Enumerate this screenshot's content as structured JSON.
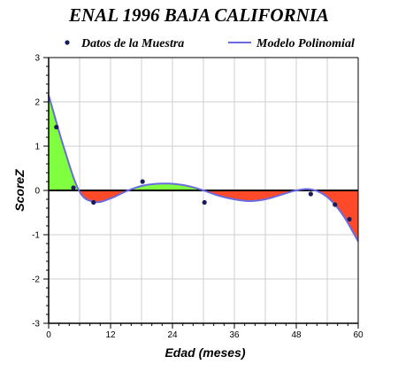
{
  "chart_data": {
    "type": "line",
    "title": "ENAL 1996 BAJA CALIFORNIA",
    "xlabel": "Edad (meses)",
    "ylabel": "ScoreZ",
    "xlim": [
      0,
      60
    ],
    "ylim": [
      -3,
      3
    ],
    "xticks": [
      "0",
      "12",
      "24",
      "36",
      "48",
      "60"
    ],
    "yticks": [
      "3",
      "2",
      "1",
      "0",
      "-1",
      "-2",
      "-3"
    ],
    "grid": true,
    "legend": "top",
    "series": [
      {
        "name": "Datos de la Muestra",
        "kind": "scatter",
        "color": "#1a1a5e",
        "x": [
          1.5,
          4.8,
          8.7,
          18.2,
          30.2,
          50.8,
          55.5,
          58.3
        ],
        "y": [
          1.43,
          0.06,
          -0.27,
          0.2,
          -0.27,
          -0.08,
          -0.32,
          -0.65
        ]
      },
      {
        "name": "Modelo Polinomial",
        "kind": "line",
        "color": "#6a6ae0",
        "x": [
          0,
          3,
          6,
          9,
          12,
          15,
          18,
          21,
          24,
          27,
          30,
          33,
          36,
          39,
          42,
          45,
          48,
          51,
          54,
          57,
          60
        ],
        "y": [
          2.15,
          0.95,
          -0.03,
          -0.26,
          -0.18,
          -0.02,
          0.1,
          0.15,
          0.15,
          0.1,
          0.0,
          -0.12,
          -0.2,
          -0.24,
          -0.2,
          -0.1,
          0.0,
          0.02,
          -0.15,
          -0.55,
          -1.15
        ]
      }
    ],
    "fill_colors": {
      "positive": "#80ff40",
      "negative": "#ff4a2a"
    },
    "grid_color": "#cfcfcf",
    "zero_line_color": "#000000"
  }
}
